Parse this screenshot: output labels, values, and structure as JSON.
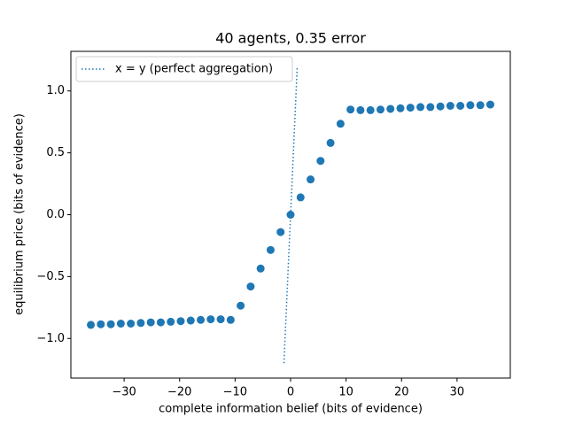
{
  "chart_data": {
    "type": "scatter",
    "title": "40 agents, 0.35 error",
    "xlabel": "complete information belief (bits of evidence)",
    "ylabel": "equilibrium price (bits of evidence)",
    "xlim": [
      -39.6,
      39.6
    ],
    "ylim": [
      -1.32,
      1.32
    ],
    "xticks": [
      {
        "value": -30,
        "label": "−30"
      },
      {
        "value": -20,
        "label": "−20"
      },
      {
        "value": -10,
        "label": "−10"
      },
      0,
      10,
      20,
      30
    ],
    "yticks": [
      {
        "value": -1.0,
        "label": "−1.0"
      },
      {
        "value": -0.5,
        "label": "−0.5"
      },
      {
        "value": 0.0,
        "label": "0.0"
      },
      {
        "value": 0.5,
        "label": "0.5"
      },
      {
        "value": 1.0,
        "label": "1.0"
      }
    ],
    "grid": false,
    "legend": "upper left",
    "series": [
      {
        "type": "scatter",
        "color": "#1f77b4",
        "x": [
          -36,
          -34.2,
          -32.4,
          -30.6,
          -28.8,
          -27,
          -25.2,
          -23.4,
          -21.6,
          -19.8,
          -18,
          -16.2,
          -14.4,
          -12.6,
          -10.8,
          -9,
          -7.2,
          -5.4,
          -3.6,
          -1.8,
          0,
          1.8,
          3.6,
          5.4,
          7.2,
          9,
          10.8,
          12.6,
          14.4,
          16.2,
          18,
          19.8,
          21.6,
          23.4,
          25.2,
          27,
          28.8,
          30.6,
          32.4,
          34.2,
          36
        ],
        "values": [
          -0.89,
          -0.885,
          -0.885,
          -0.88,
          -0.88,
          -0.875,
          -0.87,
          -0.87,
          -0.865,
          -0.86,
          -0.855,
          -0.85,
          -0.845,
          -0.845,
          -0.85,
          -0.735,
          -0.58,
          -0.435,
          -0.285,
          -0.14,
          0,
          0.14,
          0.285,
          0.435,
          0.58,
          0.735,
          0.85,
          0.845,
          0.845,
          0.85,
          0.855,
          0.86,
          0.865,
          0.87,
          0.87,
          0.875,
          0.88,
          0.88,
          0.885,
          0.885,
          0.89
        ]
      },
      {
        "type": "line",
        "name": "x = y (perfect aggregation)",
        "color": "#1f77b4",
        "dash": "dotted",
        "x": [
          -1.2,
          1.2
        ],
        "values": [
          -1.2,
          1.2
        ]
      }
    ]
  }
}
